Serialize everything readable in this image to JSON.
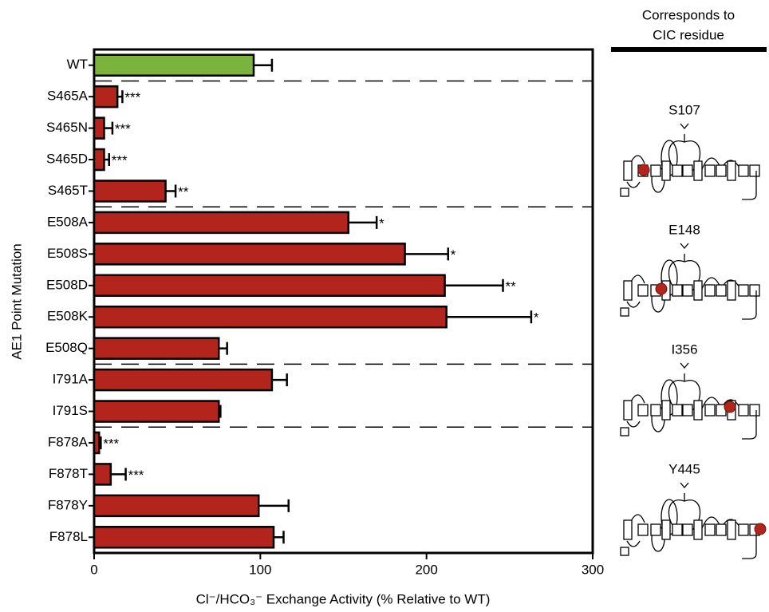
{
  "chart_data": {
    "type": "hbar",
    "xlabel": "Cl⁻/HCO₃⁻ Exchange Activity (% Relative to WT)",
    "ylabel": "AE1 Point Mutation",
    "categories": [
      "WT",
      "S465A",
      "S465N",
      "S465D",
      "S465T",
      "E508A",
      "E508S",
      "E508D",
      "E508K",
      "E508Q",
      "I791A",
      "I791S",
      "F878A",
      "F878T",
      "F878Y",
      "F878L"
    ],
    "values": [
      96,
      14,
      6,
      6,
      43,
      153,
      187,
      211,
      212,
      75,
      107,
      75,
      3,
      10,
      99,
      108
    ],
    "errors": [
      11,
      3,
      5,
      3,
      6,
      17,
      26,
      35,
      51,
      5,
      9,
      1,
      1,
      9,
      18,
      6
    ],
    "significance": [
      null,
      "***",
      "***",
      "***",
      "**",
      "*",
      "*",
      "**",
      "*",
      null,
      null,
      null,
      "***",
      "***",
      null,
      null
    ],
    "colors": [
      "#7ab43c",
      "#b3241c",
      "#b3241c",
      "#b3241c",
      "#b3241c",
      "#b3241c",
      "#b3241c",
      "#b3241c",
      "#b3241c",
      "#b3241c",
      "#b3241c",
      "#b3241c",
      "#b3241c",
      "#b3241c",
      "#b3241c",
      "#b3241c"
    ],
    "xlim": [
      0,
      300
    ],
    "xticks": [
      0,
      100,
      200,
      300
    ],
    "side_panel": {
      "title_lines": [
        "Corresponds to",
        "CIC residue"
      ],
      "residues": [
        "S107",
        "E148",
        "I356",
        "Y445"
      ]
    }
  }
}
